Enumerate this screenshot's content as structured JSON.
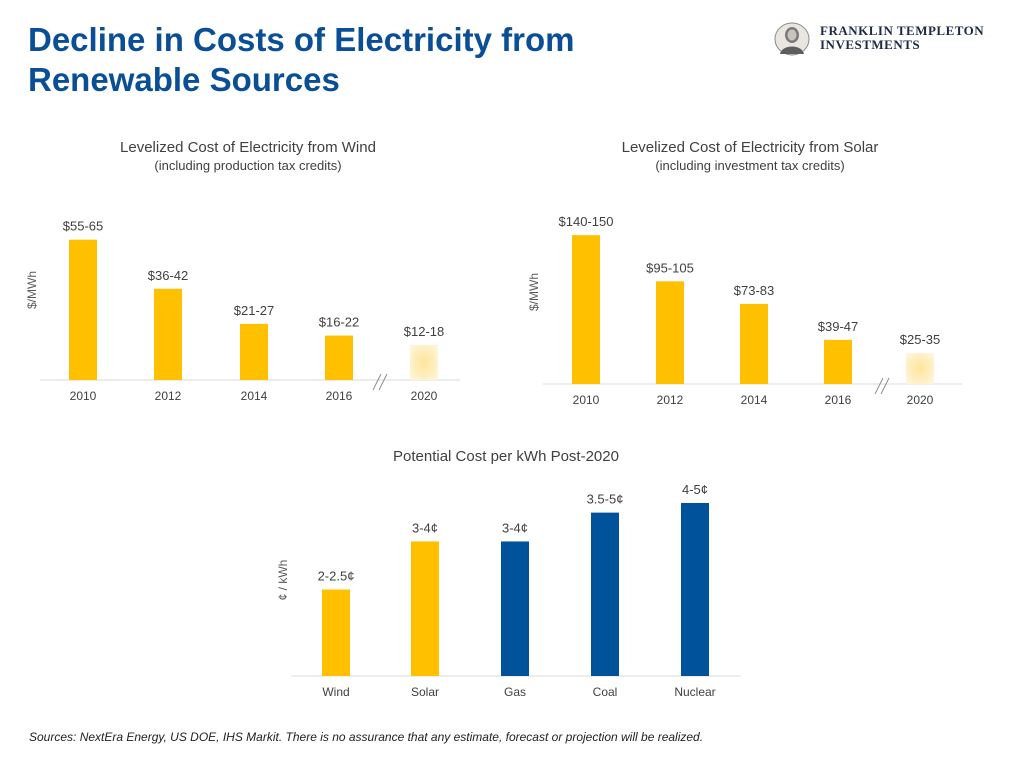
{
  "page": {
    "title": "Decline in Costs of Electricity from\nRenewable Sources",
    "sources": "Sources: NextEra Energy, US DOE, IHS Markit. There is no assurance that any estimate, forecast or projection will be realized."
  },
  "brand": {
    "line1": "FRANKLIN TEMPLETON",
    "line2": "INVESTMENTS",
    "logo": "franklin-portrait-seal"
  },
  "colors": {
    "title": "#0a4f96",
    "renewable": "#ffc000",
    "conventional": "#00539b",
    "projected": "#fde7a8",
    "axis": "#d9d9d9",
    "text": "#404040"
  },
  "chart_data": [
    {
      "type": "bar",
      "title": "Levelized Cost of Electricity from Wind",
      "subtitle": "(including production tax credits)",
      "ylabel": "$/MWh",
      "xlabel": "",
      "categories": [
        "2010",
        "2012",
        "2014",
        "2016",
        "2020"
      ],
      "values": [
        60,
        39,
        24,
        19,
        15
      ],
      "data_labels": [
        "$55-65",
        "$36-42",
        "$21-27",
        "$16-22",
        "$12-18"
      ],
      "projected": [
        false,
        false,
        false,
        false,
        true
      ],
      "axis_break_before": "2020",
      "ylim": [
        0,
        65
      ],
      "grid": false,
      "legend": "none"
    },
    {
      "type": "bar",
      "title": "Levelized Cost of Electricity from Solar",
      "subtitle": "(including investment tax credits)",
      "ylabel": "$/MWh",
      "xlabel": "",
      "categories": [
        "2010",
        "2012",
        "2014",
        "2016",
        "2020"
      ],
      "values": [
        145,
        100,
        78,
        43,
        30
      ],
      "data_labels": [
        "$140-150",
        "$95-105",
        "$73-83",
        "$39-47",
        "$25-35"
      ],
      "projected": [
        false,
        false,
        false,
        false,
        true
      ],
      "axis_break_before": "2020",
      "ylim": [
        0,
        150
      ],
      "grid": false,
      "legend": "none"
    },
    {
      "type": "bar",
      "title": "Potential Cost per kWh Post-2020",
      "subtitle": "",
      "ylabel": "¢ / kWh",
      "xlabel": "",
      "categories": [
        "Wind",
        "Solar",
        "Gas",
        "Coal",
        "Nuclear"
      ],
      "values": [
        2.25,
        3.5,
        3.5,
        4.25,
        4.5
      ],
      "data_labels": [
        "2-2.5¢",
        "3-4¢",
        "3-4¢",
        "3.5-5¢",
        "4-5¢"
      ],
      "renewable": [
        true,
        true,
        false,
        false,
        false
      ],
      "ylim": [
        0,
        4.5
      ],
      "grid": false,
      "legend": "none"
    }
  ]
}
